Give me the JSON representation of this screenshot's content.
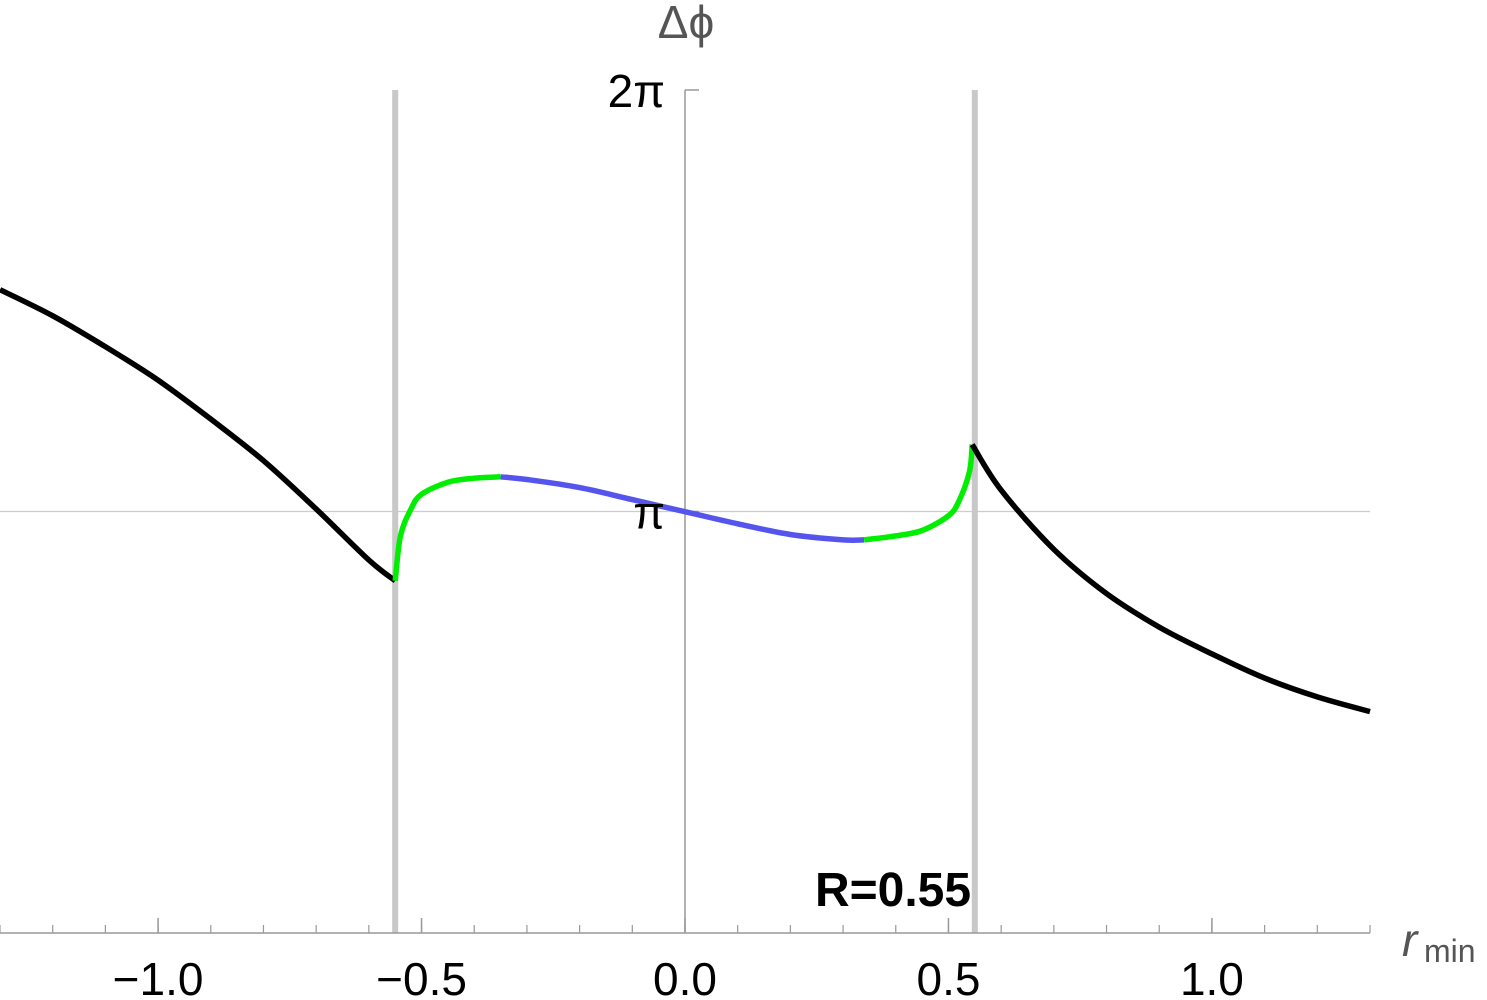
{
  "chart_data": {
    "type": "line",
    "title": "",
    "xlabel": "r",
    "xlabel_subscript": "min",
    "ylabel": "Δϕ",
    "xlim": [
      -1.3,
      1.3
    ],
    "ylim": [
      0,
      6.2832
    ],
    "x_ticks": [
      {
        "value": -1.0,
        "label": "−1.0"
      },
      {
        "value": -0.5,
        "label": "−0.5"
      },
      {
        "value": 0.0,
        "label": "0.0"
      },
      {
        "value": 0.5,
        "label": "0.5"
      },
      {
        "value": 1.0,
        "label": "1.0"
      }
    ],
    "x_minor_step": 0.1,
    "y_ticks": [
      {
        "value": 3.1416,
        "label": "π"
      },
      {
        "value": 6.2832,
        "label": "2π"
      }
    ],
    "reference_lines": {
      "horizontal": [
        3.1416
      ],
      "vertical_asymptotes": [
        -0.55,
        0.55
      ]
    },
    "annotation": "R=0.55",
    "colors": {
      "outer": "#000000",
      "transition": "#00ee00",
      "inner": "#5555ee",
      "asymptote": "#c8c8c8",
      "gridline": "#cccccc"
    },
    "series": [
      {
        "color_key": "outer",
        "x": [
          -1.3,
          -1.2,
          -1.1,
          -1.0,
          -0.9,
          -0.8,
          -0.7,
          -0.6,
          -0.55
        ],
        "y": [
          4.795,
          4.6,
          4.37,
          4.12,
          3.83,
          3.52,
          3.16,
          2.78,
          2.625
        ]
      },
      {
        "color_key": "transition",
        "x": [
          -0.55,
          -0.54,
          -0.52,
          -0.5,
          -0.45,
          -0.4,
          -0.35
        ],
        "y": [
          2.625,
          2.96,
          3.16,
          3.27,
          3.36,
          3.39,
          3.4
        ]
      },
      {
        "color_key": "inner",
        "x": [
          -0.35,
          -0.3,
          -0.2,
          -0.1,
          0.0,
          0.1,
          0.2,
          0.3,
          0.34
        ],
        "y": [
          3.4,
          3.38,
          3.32,
          3.23,
          3.14,
          3.05,
          2.97,
          2.93,
          2.93
        ]
      },
      {
        "color_key": "transition",
        "x": [
          0.34,
          0.4,
          0.45,
          0.5,
          0.52,
          0.54,
          0.545
        ],
        "y": [
          2.93,
          2.96,
          3.0,
          3.11,
          3.22,
          3.44,
          3.64
        ]
      },
      {
        "color_key": "outer",
        "x": [
          0.545,
          0.6,
          0.7,
          0.8,
          0.9,
          1.0,
          1.1,
          1.2,
          1.3
        ],
        "y": [
          3.64,
          3.3,
          2.86,
          2.53,
          2.28,
          2.08,
          1.9,
          1.76,
          1.65
        ]
      }
    ]
  }
}
